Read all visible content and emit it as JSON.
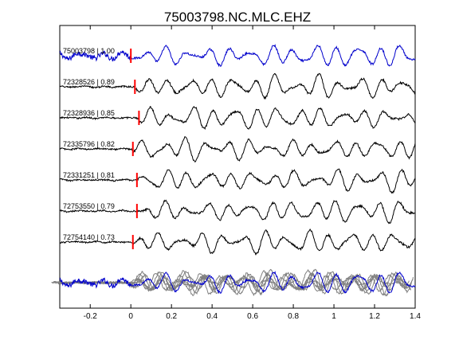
{
  "chart_data": {
    "type": "line",
    "title": "75003798.NC.MLC.EHZ",
    "xlabel": "",
    "ylabel": "",
    "xlim": [
      -0.35,
      1.4
    ],
    "xticks": [
      -0.2,
      0,
      0.2,
      0.4,
      0.6,
      0.8,
      1,
      1.2,
      1.4
    ],
    "xtick_labels": [
      "-0.2",
      "0",
      "0.2",
      "0.4",
      "0.6",
      "0.8",
      "1",
      "1.2",
      "1.4"
    ],
    "grid": false,
    "legend": "none",
    "pick_color": "#ff0000",
    "master_color": "#0000cc",
    "trace_color": "#000000",
    "stack_color": "#808080",
    "traces": [
      {
        "event": "75003798",
        "cc": "1.00",
        "label": "75003798 | 1.00",
        "pick_time": 0.0,
        "master": true
      },
      {
        "event": "72328526",
        "cc": "0.89",
        "label": "72328526 | 0.89",
        "pick_time": 0.02,
        "master": false
      },
      {
        "event": "72328936",
        "cc": "0.85",
        "label": "72328936 | 0.85",
        "pick_time": 0.04,
        "master": false
      },
      {
        "event": "72335796",
        "cc": "0.82",
        "label": "72335796 | 0.82",
        "pick_time": 0.01,
        "master": false
      },
      {
        "event": "72331251",
        "cc": "0.81",
        "label": "72331251 | 0.81",
        "pick_time": 0.03,
        "master": false
      },
      {
        "event": "72753550",
        "cc": "0.79",
        "label": "72753550 | 0.79",
        "pick_time": 0.03,
        "master": false
      },
      {
        "event": "72754140",
        "cc": "0.73",
        "label": "72754140 | 0.73",
        "pick_time": 0.01,
        "master": false
      }
    ],
    "overlay_row": true
  }
}
